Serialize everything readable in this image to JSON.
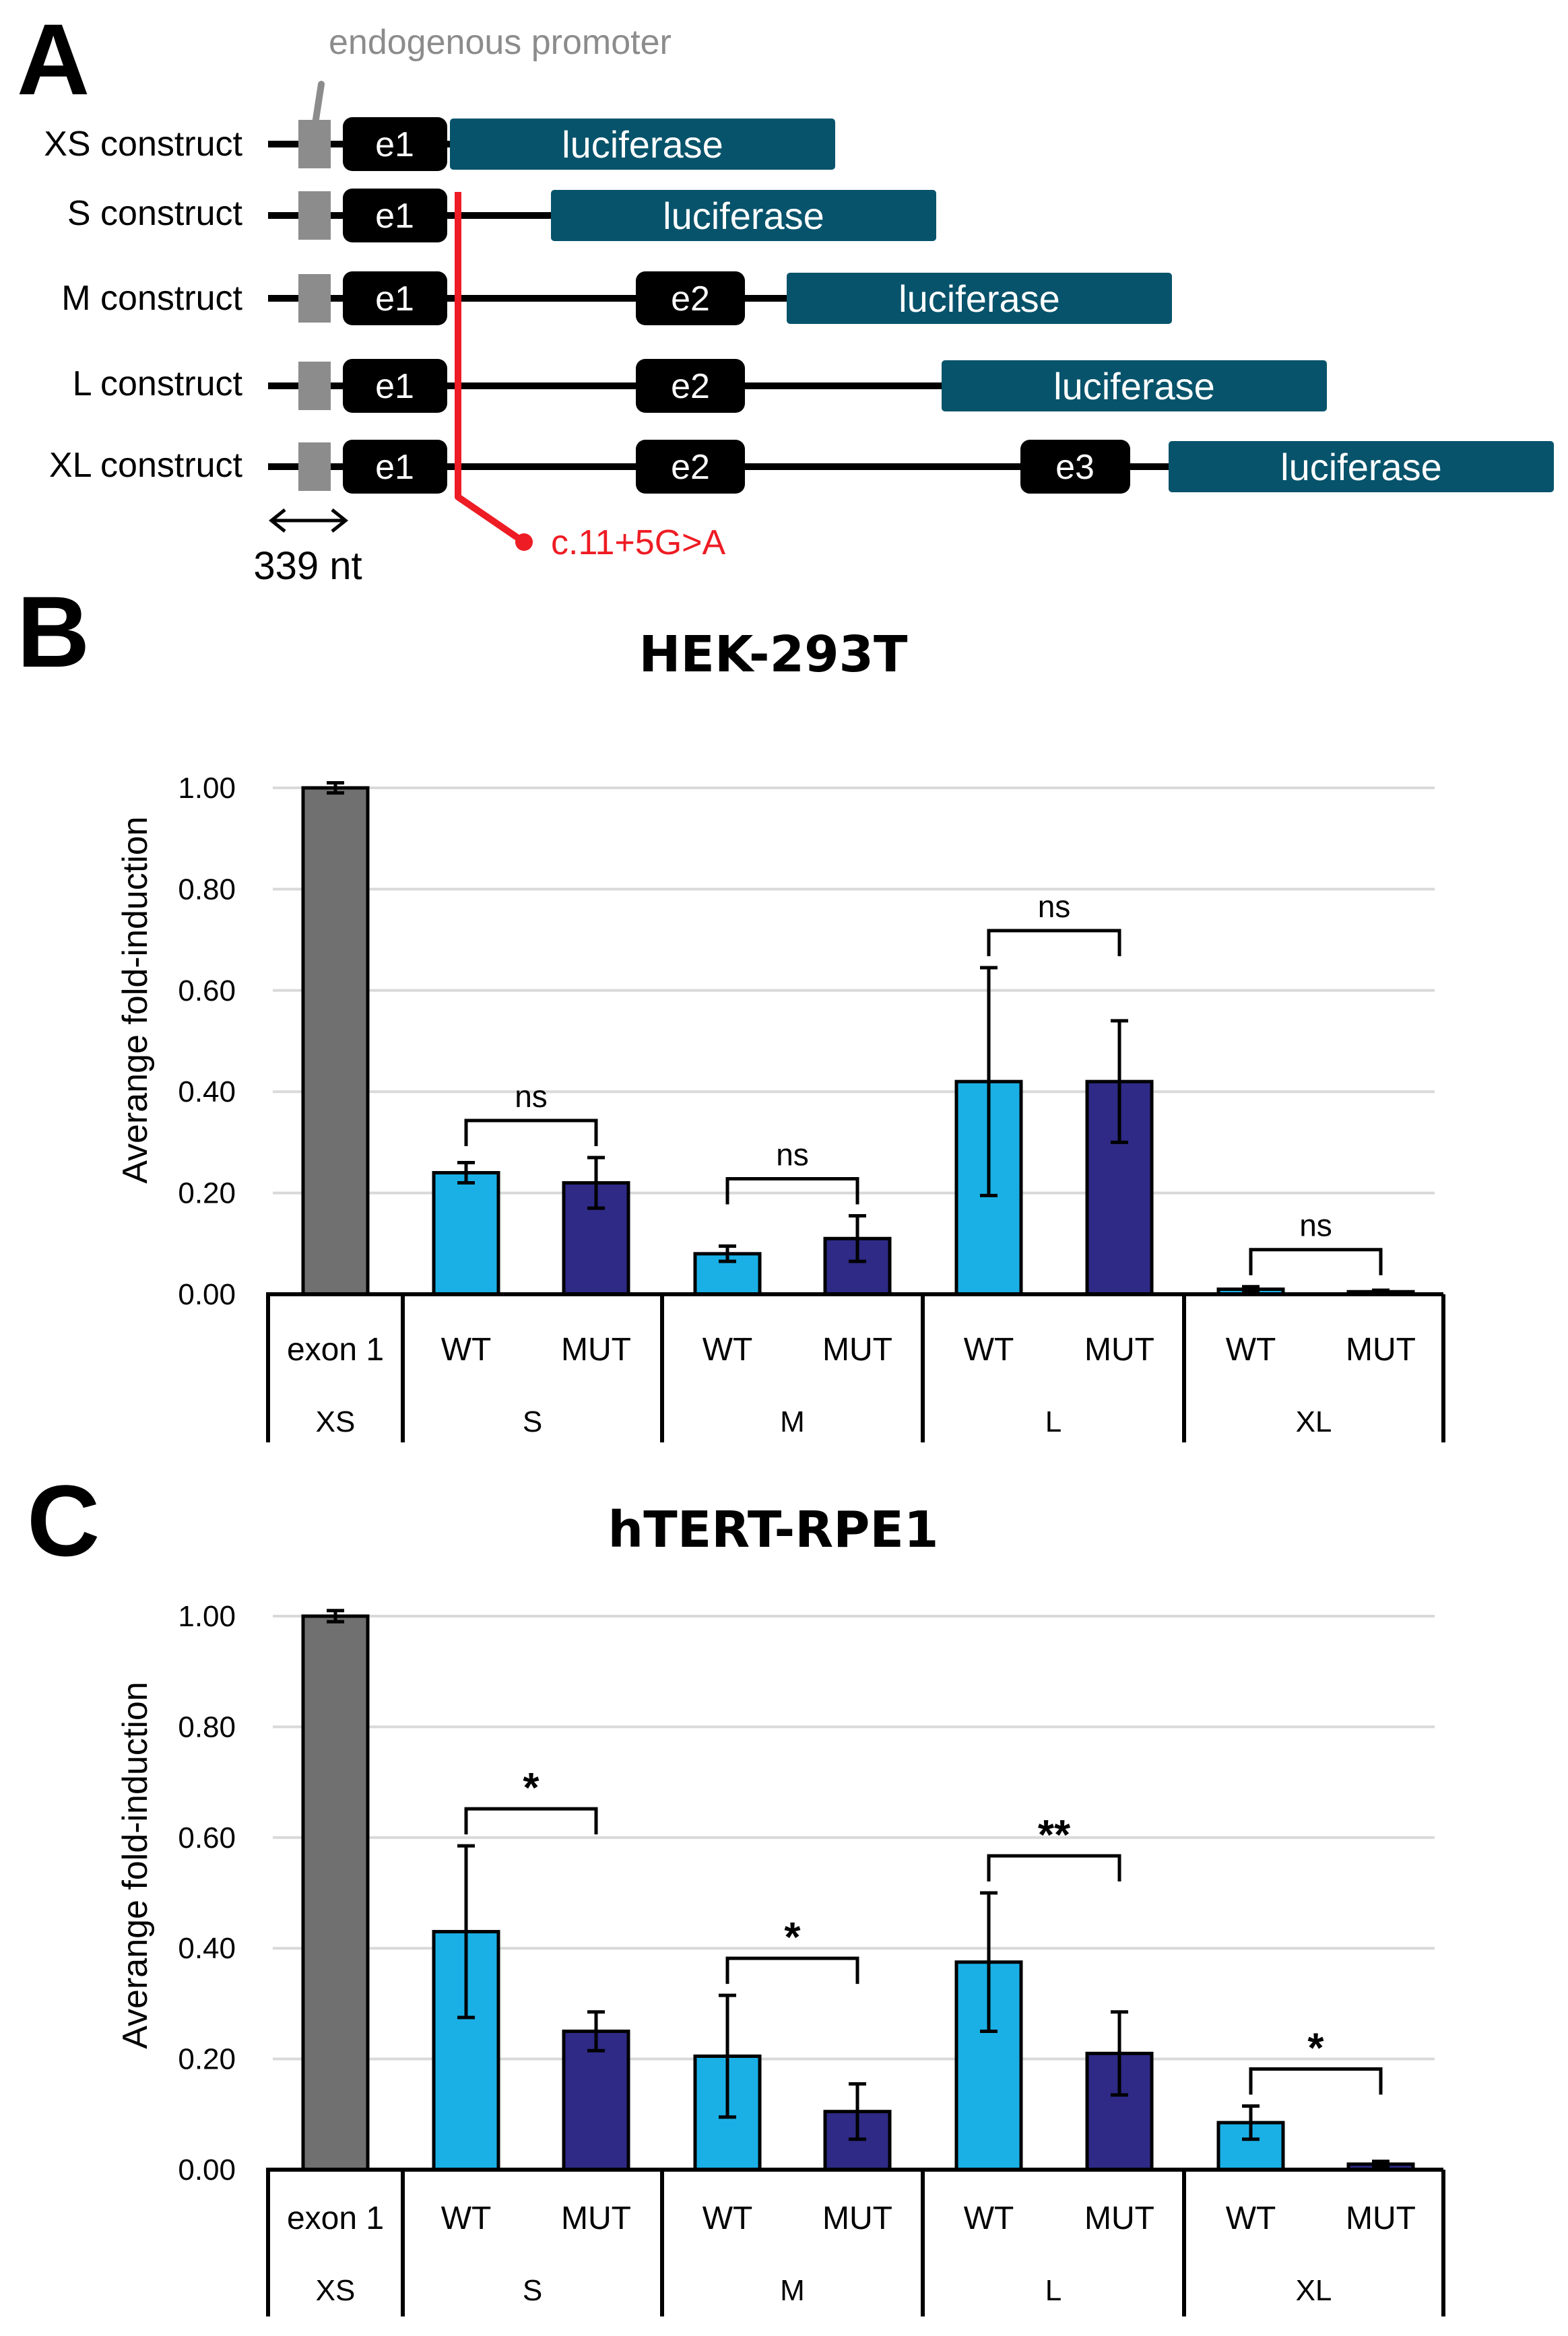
{
  "panel_a": {
    "letter": "A",
    "promoter_label": "endogenous promoter",
    "constructs": [
      {
        "name": "XS construct",
        "exons": [
          "e1"
        ]
      },
      {
        "name": "S construct",
        "exons": [
          "e1"
        ]
      },
      {
        "name": "M construct",
        "exons": [
          "e1",
          "e2"
        ]
      },
      {
        "name": "L construct",
        "exons": [
          "e1",
          "e2"
        ]
      },
      {
        "name": "XL construct",
        "exons": [
          "e1",
          "e2",
          "e3"
        ]
      }
    ],
    "reporter_label": "luciferase",
    "mutation_label": "c.11+5G>A",
    "scale_label": "339 nt",
    "colors": {
      "exon": "#000000",
      "luciferase": "#07536b",
      "promoter": "#8c8c8c",
      "mutation": "#ee1c24"
    }
  },
  "chart_data": [
    {
      "panel": "B",
      "type": "bar",
      "title": "HEK-293T",
      "ylabel": "Averange fold-induction",
      "ylim": [
        0,
        1.0
      ],
      "yticks": [
        "0.00",
        "0.20",
        "0.40",
        "0.60",
        "0.80",
        "1.00"
      ],
      "categories": [
        "exon 1",
        "WT",
        "MUT",
        "WT",
        "MUT",
        "WT",
        "MUT",
        "WT",
        "MUT"
      ],
      "groups": [
        "XS",
        "S",
        "M",
        "L",
        "XL"
      ],
      "values": [
        1.0,
        0.24,
        0.22,
        0.08,
        0.11,
        0.42,
        0.42,
        0.01,
        0.005
      ],
      "errors": [
        0.01,
        0.02,
        0.05,
        0.015,
        0.045,
        0.225,
        0.12,
        0.005,
        0.003
      ],
      "significance": [
        {
          "pair": [
            1,
            2
          ],
          "label": "ns"
        },
        {
          "pair": [
            3,
            4
          ],
          "label": "ns"
        },
        {
          "pair": [
            5,
            6
          ],
          "label": "ns"
        },
        {
          "pair": [
            7,
            8
          ],
          "label": "ns"
        }
      ]
    },
    {
      "panel": "C",
      "type": "bar",
      "title": "hTERT-RPE1",
      "ylabel": "Averange fold-induction",
      "ylim": [
        0,
        1.0
      ],
      "yticks": [
        "0.00",
        "0.20",
        "0.40",
        "0.60",
        "0.80",
        "1.00"
      ],
      "categories": [
        "exon 1",
        "WT",
        "MUT",
        "WT",
        "MUT",
        "WT",
        "MUT",
        "WT",
        "MUT"
      ],
      "groups": [
        "XS",
        "S",
        "M",
        "L",
        "XL"
      ],
      "values": [
        1.0,
        0.43,
        0.25,
        0.205,
        0.105,
        0.375,
        0.21,
        0.085,
        0.01
      ],
      "errors": [
        0.01,
        0.155,
        0.035,
        0.11,
        0.05,
        0.125,
        0.075,
        0.03,
        0.005
      ],
      "significance": [
        {
          "pair": [
            1,
            2
          ],
          "label": "*"
        },
        {
          "pair": [
            3,
            4
          ],
          "label": "*"
        },
        {
          "pair": [
            5,
            6
          ],
          "label": "**"
        },
        {
          "pair": [
            7,
            8
          ],
          "label": "*"
        }
      ]
    }
  ],
  "colors": {
    "xs": "#707070",
    "wt": "#1ab0e6",
    "mut": "#2e2a86",
    "grid": "#d9d9d9"
  }
}
